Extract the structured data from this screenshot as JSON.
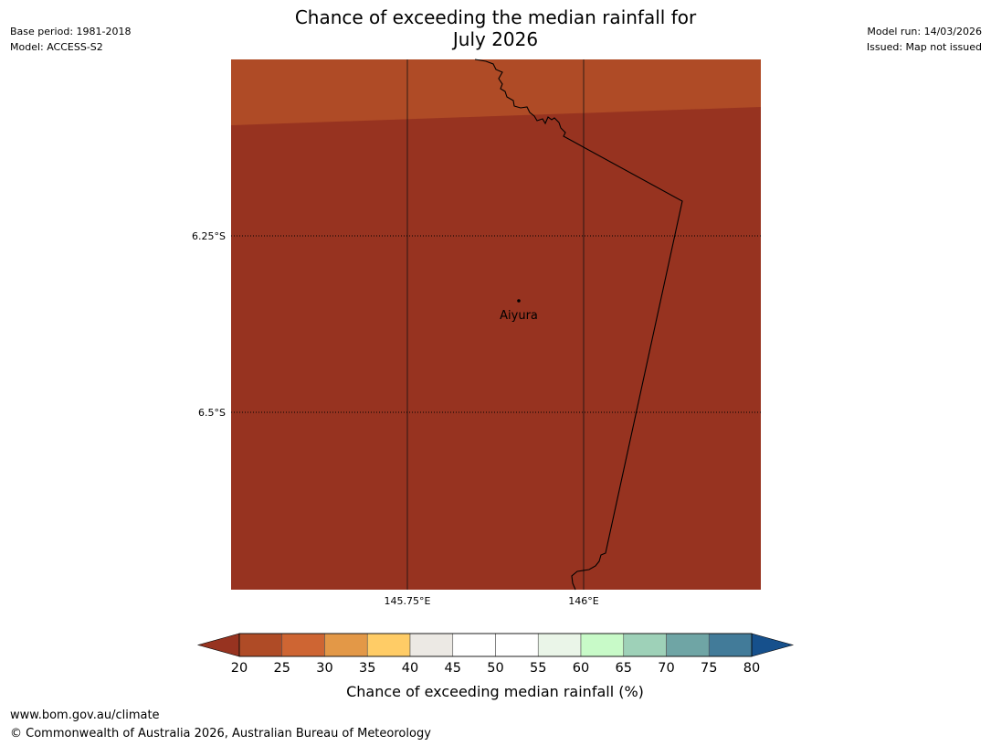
{
  "title": {
    "line1": "Chance of exceeding the median rainfall for",
    "line2": "July 2026"
  },
  "meta_left": {
    "base_period": "Base period: 1981-2018",
    "model": "Model: ACCESS-S2"
  },
  "meta_right": {
    "model_run": "Model run: 14/03/2026",
    "issued": "Issued: Map not issued"
  },
  "map": {
    "lat_labels": [
      "6.25°S",
      "6.5°S"
    ],
    "lon_labels": [
      "145.75°E",
      "146°E"
    ],
    "place": "Aiyura",
    "region_colors": {
      "upper": "#af4b26",
      "lower": "#973320"
    }
  },
  "colorbar": {
    "ticks": [
      "20",
      "25",
      "30",
      "35",
      "40",
      "45",
      "50",
      "55",
      "60",
      "65",
      "70",
      "75",
      "80"
    ],
    "colors": [
      "#973320",
      "#af4b26",
      "#ce6533",
      "#e39847",
      "#ffcc66",
      "#ece9e4",
      "#ffffff",
      "#ffffff",
      "#eaf5e8",
      "#c8fac8",
      "#9ed1b8",
      "#6fa5a5",
      "#427b99",
      "#16508c"
    ],
    "title": "Chance of exceeding median rainfall (%)"
  },
  "footer": {
    "url": "www.bom.gov.au/climate",
    "copyright": "© Commonwealth of Australia 2026, Australian Bureau of Meteorology"
  }
}
